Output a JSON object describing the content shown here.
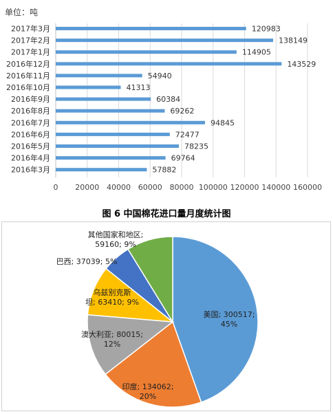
{
  "caption": "图 6 中国棉花进口量月度统计图",
  "chart_data": [
    {
      "type": "bar",
      "orientation": "horizontal",
      "unit_label": "单位：吨",
      "categories": [
        "2017年3月",
        "2017年2月",
        "2017年1月",
        "2016年12月",
        "2016年11月",
        "2016年10月",
        "2016年9月",
        "2016年8月",
        "2016年7月",
        "2016年6月",
        "2016年5月",
        "2016年4月",
        "2016年3月"
      ],
      "values": [
        120983,
        138149,
        114905,
        143529,
        54940,
        41313,
        60384,
        69262,
        94845,
        72477,
        78235,
        69764,
        57882
      ],
      "xlim": [
        0,
        160000
      ],
      "xticks": [
        "0",
        "20000",
        "40000",
        "60000",
        "80000",
        "100000",
        "120000",
        "140000",
        "160000"
      ],
      "bar_color": "#5b9bd5",
      "legend": "none"
    },
    {
      "type": "pie",
      "slices": [
        {
          "label_lines": [
            "美国; 300517;",
            "45%"
          ],
          "value": 300517,
          "percent": 45,
          "color": "#5b9bd5"
        },
        {
          "label_lines": [
            "印度; 134062;",
            "20%"
          ],
          "value": 134062,
          "percent": 20,
          "color": "#ed7d31"
        },
        {
          "label_lines": [
            "澳大利亚; 80015;",
            "12%"
          ],
          "value": 80015,
          "percent": 12,
          "color": "#a5a5a5"
        },
        {
          "label_lines": [
            "乌兹别克斯",
            "坦; 63410; 9%"
          ],
          "value": 63410,
          "percent": 9,
          "color": "#ffc000"
        },
        {
          "label_lines": [
            "巴西; 37039; 5%"
          ],
          "value": 37039,
          "percent": 5,
          "color": "#4472c4"
        },
        {
          "label_lines": [
            "其他国家和地区;",
            "59160; 9%"
          ],
          "value": 59160,
          "percent": 9,
          "color": "#70ad47"
        }
      ],
      "start": "12 o'clock, clockwise",
      "legend": "none"
    }
  ]
}
